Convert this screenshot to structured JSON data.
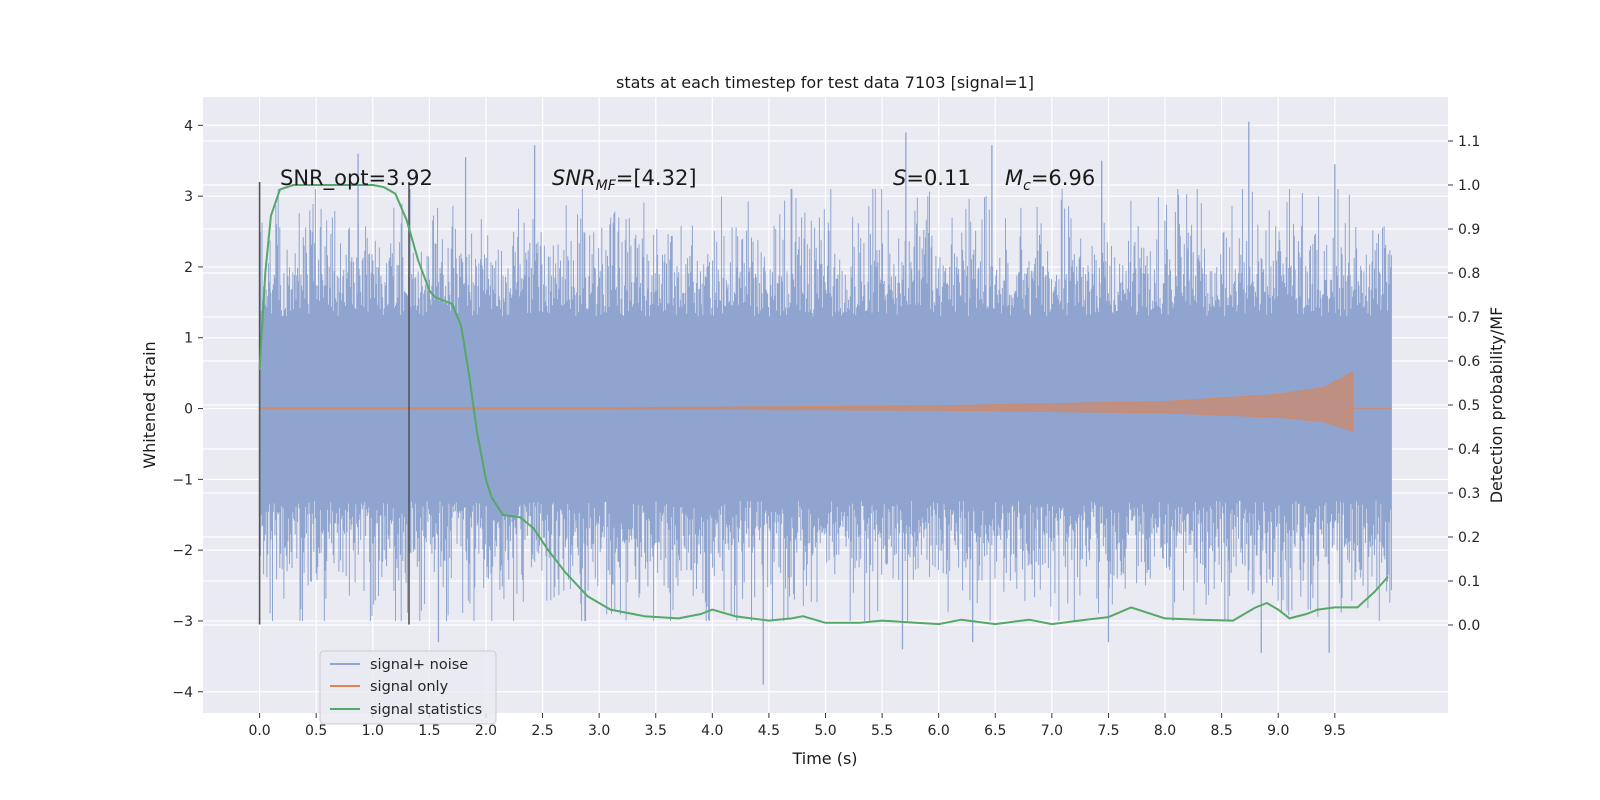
{
  "chart_data": {
    "type": "line",
    "title": "stats at each timestep for test data 7103 [signal=1]",
    "xlabel": "Time (s)",
    "ylabel": "Whitened strain",
    "ylabel_right": "Detection probability/MF",
    "xlim": [
      -0.5,
      10.5
    ],
    "ylim": [
      -4.3,
      4.4
    ],
    "ylim_right": [
      -0.2,
      1.2
    ],
    "xticks": [
      "0.0",
      "0.5",
      "1.0",
      "1.5",
      "2.0",
      "2.5",
      "3.0",
      "3.5",
      "4.0",
      "4.5",
      "5.0",
      "5.5",
      "6.0",
      "6.5",
      "7.0",
      "7.5",
      "8.0",
      "8.5",
      "9.0",
      "9.5"
    ],
    "yticks": [
      "−4",
      "−3",
      "−2",
      "−1",
      "0",
      "1",
      "2",
      "3",
      "4"
    ],
    "yticks_right": [
      "0.0",
      "0.1",
      "0.2",
      "0.3",
      "0.4",
      "0.5",
      "0.6",
      "0.7",
      "0.8",
      "0.9",
      "1.0",
      "1.1"
    ],
    "grid": true,
    "colors": {
      "noise": "#8fa4cf",
      "signal": "#dd8452",
      "stats": "#55a868",
      "background": "#eaeaf2",
      "grid": "#ffffff",
      "vline": "#555555"
    },
    "annotations": {
      "snr_opt": "SNR_opt=3.92",
      "snr_mf_var": "SNR",
      "snr_mf_sub": "MF",
      "snr_mf_val": "=[4.32]",
      "s_var": "S",
      "s_val": "=0.11",
      "mc_var": "M",
      "mc_sub": "c",
      "mc_val": "=6.96"
    },
    "vlines": [
      {
        "x": 0.0,
        "ymin": -3.05,
        "ymax": 3.2
      },
      {
        "x": 1.32,
        "ymin": -3.05,
        "ymax": 3.2
      }
    ],
    "noise": {
      "x_range": [
        0.0,
        10.0
      ],
      "band": [
        -1.3,
        1.3
      ],
      "peak_max": [
        2.4,
        3.1
      ],
      "trough_min": [
        -2.4,
        -3.0
      ],
      "spikes": [
        {
          "x": 0.87,
          "y": 3.6
        },
        {
          "x": 1.82,
          "y": 3.55
        },
        {
          "x": 2.43,
          "y": 3.72
        },
        {
          "x": 5.71,
          "y": 3.9
        },
        {
          "x": 6.47,
          "y": 3.72
        },
        {
          "x": 8.74,
          "y": 4.05
        },
        {
          "x": 9.5,
          "y": 3.45
        },
        {
          "x": 7.44,
          "y": 3.5
        },
        {
          "x": 4.45,
          "y": -3.9
        },
        {
          "x": 5.68,
          "y": -3.4
        },
        {
          "x": 6.3,
          "y": -3.3
        },
        {
          "x": 7.5,
          "y": -3.3
        },
        {
          "x": 8.85,
          "y": -3.45
        },
        {
          "x": 9.45,
          "y": -3.45
        },
        {
          "x": 1.58,
          "y": -3.3
        }
      ]
    },
    "signal": {
      "x_range": [
        0.0,
        9.66
      ],
      "amplitude_envelope": [
        [
          0.0,
          0.01
        ],
        [
          3.0,
          0.01
        ],
        [
          6.0,
          0.04
        ],
        [
          8.0,
          0.1
        ],
        [
          9.0,
          0.2
        ],
        [
          9.4,
          0.3
        ],
        [
          9.62,
          0.48
        ],
        [
          9.66,
          0.52
        ]
      ]
    },
    "series": [
      {
        "name": "signal statistics",
        "axis": "right",
        "x": [
          0.0,
          0.05,
          0.1,
          0.18,
          0.3,
          0.5,
          0.8,
          1.0,
          1.1,
          1.2,
          1.3,
          1.4,
          1.5,
          1.55,
          1.6,
          1.7,
          1.78,
          1.85,
          1.92,
          2.0,
          2.05,
          2.1,
          2.15,
          2.3,
          2.42,
          2.55,
          2.7,
          2.9,
          3.1,
          3.4,
          3.7,
          3.9,
          4.0,
          4.2,
          4.5,
          4.7,
          4.8,
          5.0,
          5.3,
          5.5,
          5.8,
          6.0,
          6.2,
          6.5,
          6.8,
          7.0,
          7.3,
          7.5,
          7.7,
          8.0,
          8.3,
          8.6,
          8.8,
          8.9,
          9.0,
          9.1,
          9.25,
          9.35,
          9.5,
          9.7,
          9.85,
          9.97
        ],
        "y": [
          0.58,
          0.8,
          0.93,
          0.99,
          1.0,
          1.0,
          1.0,
          1.0,
          0.995,
          0.98,
          0.92,
          0.83,
          0.76,
          0.745,
          0.74,
          0.73,
          0.68,
          0.57,
          0.44,
          0.33,
          0.29,
          0.27,
          0.25,
          0.245,
          0.22,
          0.17,
          0.12,
          0.065,
          0.035,
          0.02,
          0.015,
          0.025,
          0.035,
          0.02,
          0.01,
          0.015,
          0.02,
          0.005,
          0.005,
          0.01,
          0.005,
          0.002,
          0.012,
          0.002,
          0.012,
          0.002,
          0.012,
          0.018,
          0.04,
          0.015,
          0.012,
          0.01,
          0.04,
          0.05,
          0.035,
          0.015,
          0.025,
          0.035,
          0.04,
          0.04,
          0.075,
          0.11
        ]
      }
    ],
    "legend": {
      "placement": "lower-left",
      "entries": [
        "signal+ noise",
        "signal only",
        "signal statistics"
      ]
    }
  }
}
